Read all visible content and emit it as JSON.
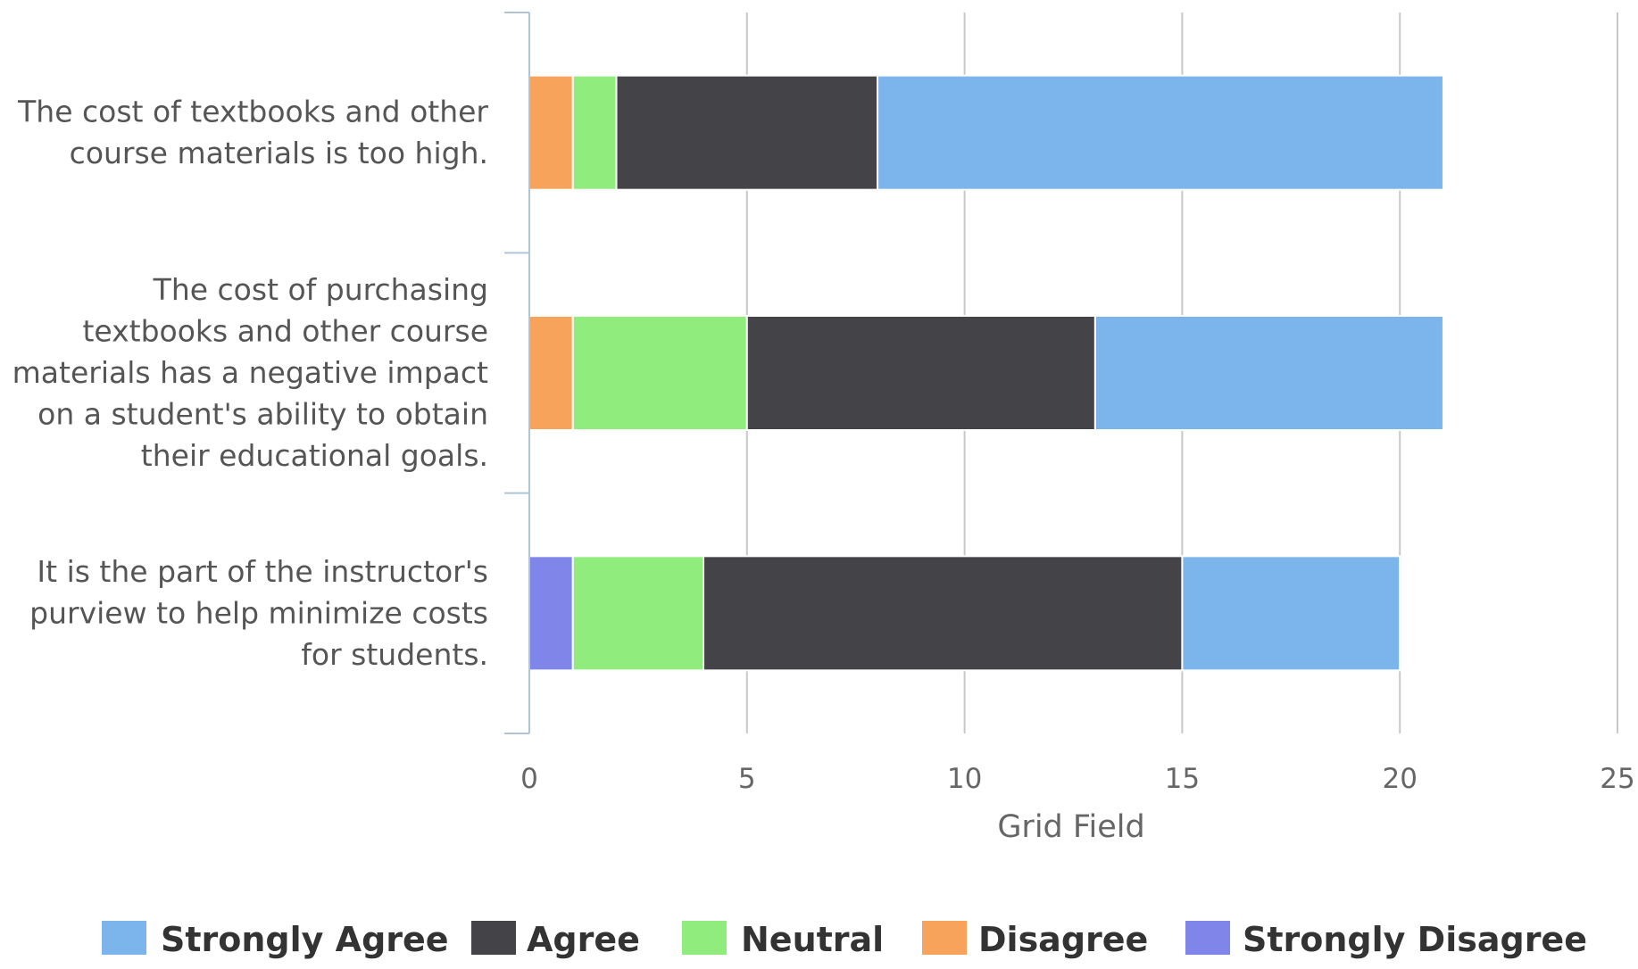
{
  "chart_data": {
    "type": "bar",
    "orientation": "horizontal",
    "stacked": true,
    "categories": [
      "The cost of textbooks and other course materials is too high.",
      "The cost of purchasing textbooks and other course materials has a negative impact on a student's ability to obtain their educational goals.",
      "It is the part of the instructor's purview to help minimize costs for students."
    ],
    "category_lines": [
      [
        "The cost of textbooks and other",
        "course materials is too high."
      ],
      [
        "The cost of purchasing",
        "textbooks and other course",
        "materials has a negative impact",
        "on a student's ability to obtain",
        "their educational goals."
      ],
      [
        "It is the part of the instructor's",
        "purview to help minimize costs",
        "for students."
      ]
    ],
    "stack_order": [
      "Strongly Disagree",
      "Disagree",
      "Neutral",
      "Agree",
      "Strongly Agree"
    ],
    "series": [
      {
        "name": "Strongly Agree",
        "color": "#7cb5ec",
        "values": [
          13,
          8,
          5
        ]
      },
      {
        "name": "Agree",
        "color": "#434348",
        "values": [
          6,
          8,
          11
        ]
      },
      {
        "name": "Neutral",
        "color": "#90ed7d",
        "values": [
          1,
          4,
          3
        ]
      },
      {
        "name": "Disagree",
        "color": "#f7a35c",
        "values": [
          1,
          1,
          0
        ]
      },
      {
        "name": "Strongly Disagree",
        "color": "#8085e9",
        "values": [
          0,
          0,
          1
        ]
      }
    ],
    "xlabel": "Grid Field",
    "ylabel": "",
    "xlim": [
      0,
      25
    ],
    "xticks": [
      0,
      5,
      10,
      15,
      20,
      25
    ],
    "grid": true,
    "legend_position": "bottom"
  }
}
